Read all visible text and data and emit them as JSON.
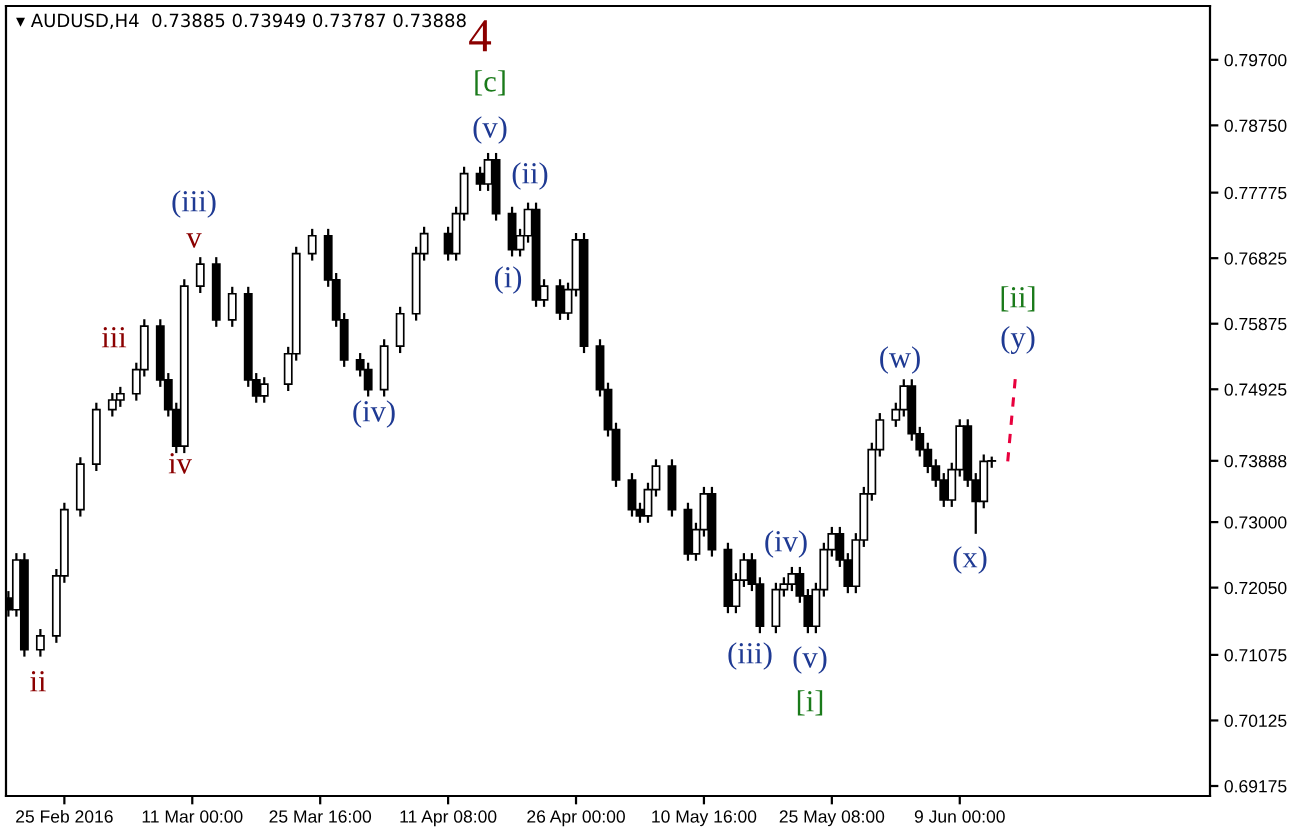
{
  "chart_data": {
    "type": "candlestick",
    "title": "▾ AUDUSD,H4  0.73885 0.73949 0.73787 0.73888",
    "categories": [
      null,
      null,
      null,
      null,
      null,
      null,
      null,
      "25 Feb 2016",
      null,
      null,
      null,
      null,
      null,
      null,
      null,
      null,
      null,
      null,
      null,
      null,
      null,
      null,
      null,
      "11 Mar 00:00",
      null,
      null,
      null,
      null,
      null,
      null,
      null,
      null,
      null,
      null,
      null,
      null,
      null,
      null,
      null,
      "25 Mar 16:00",
      null,
      null,
      null,
      null,
      null,
      null,
      null,
      null,
      null,
      null,
      null,
      null,
      null,
      null,
      null,
      "11 Apr 08:00",
      null,
      null,
      null,
      null,
      null,
      null,
      null,
      null,
      null,
      null,
      null,
      null,
      null,
      null,
      null,
      "26 Apr 00:00",
      null,
      null,
      null,
      null,
      null,
      null,
      null,
      null,
      null,
      null,
      null,
      null,
      null,
      null,
      null,
      "10 May 16:00",
      null,
      null,
      null,
      null,
      null,
      null,
      null,
      null,
      null,
      null,
      null,
      null,
      null,
      null,
      null,
      "25 May 08:00",
      null,
      null,
      null,
      null,
      null,
      null,
      null,
      null,
      null,
      null,
      null,
      null,
      null,
      null,
      null,
      "9 Jun 00:00",
      null,
      null,
      null,
      null,
      null,
      null,
      null,
      null,
      null,
      null,
      null,
      null,
      null,
      null,
      null,
      null,
      null,
      null,
      null,
      null,
      null,
      null,
      null,
      null,
      null,
      null,
      null,
      null,
      null,
      null,
      null
    ],
    "ylim": [
      0.6903,
      0.8048
    ],
    "yticks": [
      {
        "value": 0.797,
        "label": "0.79700"
      },
      {
        "value": 0.7875,
        "label": "0.78750"
      },
      {
        "value": 0.77775,
        "label": "0.77775"
      },
      {
        "value": 0.76825,
        "label": "0.76825"
      },
      {
        "value": 0.75875,
        "label": "0.75875"
      },
      {
        "value": 0.74925,
        "label": "0.74925"
      },
      {
        "value": 0.73888,
        "label": "0.73888"
      },
      {
        "value": 0.73,
        "label": "0.73000"
      },
      {
        "value": 0.7205,
        "label": "0.72050"
      },
      {
        "value": 0.71075,
        "label": "0.71075"
      },
      {
        "value": 0.70125,
        "label": "0.70125"
      },
      {
        "value": 0.69175,
        "label": "0.69175"
      }
    ],
    "grid": false,
    "series": [
      {
        "type": "candlestick",
        "color": "#000000",
        "ohlc": [
          [
            0.719,
            0.72,
            0.7163,
            0.7173
          ],
          [
            0.7173,
            0.7255,
            0.7163,
            0.7245
          ],
          [
            0.7245,
            0.7255,
            0.7105,
            0.7115
          ],
          null,
          [
            0.7115,
            0.7145,
            0.7105,
            0.7135
          ],
          null,
          [
            0.7135,
            0.7232,
            0.7125,
            0.7222
          ],
          [
            0.7222,
            0.7328,
            0.7212,
            0.7318
          ],
          null,
          [
            0.7318,
            0.7394,
            0.7308,
            0.7384
          ],
          null,
          [
            0.7384,
            0.7473,
            0.7374,
            0.7463
          ],
          null,
          [
            0.7463,
            0.7487,
            0.7453,
            0.7477
          ],
          [
            0.7477,
            0.7496,
            0.7467,
            0.7486
          ],
          null,
          [
            0.7486,
            0.7531,
            0.7476,
            0.7521
          ],
          [
            0.7521,
            0.7594,
            0.7511,
            0.7584
          ],
          null,
          [
            0.7584,
            0.7594,
            0.7496,
            0.7506
          ],
          [
            0.7506,
            0.7516,
            0.7453,
            0.7463
          ],
          [
            0.7463,
            0.7473,
            0.74,
            0.741
          ],
          [
            0.741,
            0.7652,
            0.74,
            0.7642
          ],
          null,
          [
            0.7642,
            0.7684,
            0.7632,
            0.7674
          ],
          null,
          [
            0.7674,
            0.7684,
            0.7583,
            0.7593
          ],
          null,
          [
            0.7593,
            0.7641,
            0.7583,
            0.7631
          ],
          null,
          [
            0.7631,
            0.7641,
            0.7496,
            0.7506
          ],
          [
            0.7506,
            0.7516,
            0.7473,
            0.7483
          ],
          [
            0.7483,
            0.751,
            0.7473,
            0.75
          ],
          null,
          null,
          [
            0.75,
            0.7554,
            0.749,
            0.7544
          ],
          [
            0.7544,
            0.7699,
            0.7534,
            0.7689
          ],
          null,
          [
            0.7689,
            0.7725,
            0.7679,
            0.7715
          ],
          null,
          [
            0.7715,
            0.7725,
            0.7641,
            0.7651
          ],
          [
            0.7651,
            0.7661,
            0.7583,
            0.7593
          ],
          [
            0.7593,
            0.7603,
            0.7525,
            0.7535
          ],
          null,
          [
            0.7535,
            0.7545,
            0.7511,
            0.7521
          ],
          [
            0.7521,
            0.7531,
            0.7482,
            0.7492
          ],
          null,
          [
            0.7492,
            0.7565,
            0.7482,
            0.7555
          ],
          null,
          [
            0.7555,
            0.7612,
            0.7545,
            0.7602
          ],
          null,
          [
            0.7602,
            0.7699,
            0.7592,
            0.7689
          ],
          [
            0.7689,
            0.7728,
            0.7679,
            0.7718
          ],
          null,
          null,
          [
            0.7718,
            0.7728,
            0.7679,
            0.7689
          ],
          [
            0.7689,
            0.7757,
            0.7679,
            0.7747
          ],
          [
            0.7747,
            0.7815,
            0.7737,
            0.7805
          ],
          null,
          [
            0.7805,
            0.7815,
            0.778,
            0.779
          ],
          [
            0.779,
            0.7835,
            0.778,
            0.7825
          ],
          [
            0.7825,
            0.7835,
            0.7737,
            0.7747
          ],
          null,
          [
            0.7747,
            0.7757,
            0.7685,
            0.7695
          ],
          [
            0.7695,
            0.7725,
            0.7685,
            0.7715
          ],
          [
            0.7715,
            0.7763,
            0.7705,
            0.7753
          ],
          [
            0.7753,
            0.7763,
            0.7612,
            0.7622
          ],
          [
            0.7622,
            0.7652,
            0.7612,
            0.7642
          ],
          null,
          [
            0.7642,
            0.7652,
            0.7593,
            0.7603
          ],
          [
            0.7603,
            0.7647,
            0.7593,
            0.7637
          ],
          [
            0.7637,
            0.7719,
            0.7627,
            0.7709
          ],
          [
            0.7709,
            0.7719,
            0.7545,
            0.7555
          ],
          null,
          [
            0.7555,
            0.7565,
            0.7482,
            0.7492
          ],
          [
            0.7492,
            0.7502,
            0.7424,
            0.7434
          ],
          [
            0.7434,
            0.7444,
            0.7351,
            0.7361
          ],
          null,
          [
            0.7361,
            0.7371,
            0.7308,
            0.7318
          ],
          [
            0.7318,
            0.7328,
            0.7299,
            0.7309
          ],
          [
            0.7309,
            0.7357,
            0.7299,
            0.7347
          ],
          [
            0.7347,
            0.7391,
            0.7337,
            0.7381
          ],
          null,
          [
            0.7381,
            0.7391,
            0.7308,
            0.7318
          ],
          null,
          [
            0.7318,
            0.7328,
            0.7244,
            0.7254
          ],
          [
            0.7254,
            0.7299,
            0.7244,
            0.7289
          ],
          [
            0.7289,
            0.7351,
            0.7279,
            0.7341
          ],
          [
            0.7341,
            0.7351,
            0.725,
            0.726
          ],
          null,
          [
            0.726,
            0.727,
            0.7168,
            0.7178
          ],
          [
            0.7178,
            0.7226,
            0.7168,
            0.7216
          ],
          [
            0.7216,
            0.7255,
            0.7206,
            0.7245
          ],
          [
            0.7245,
            0.7255,
            0.72,
            0.721
          ],
          [
            0.721,
            0.722,
            0.7139,
            0.7149
          ],
          null,
          [
            0.7149,
            0.7212,
            0.7139,
            0.7202
          ],
          [
            0.7202,
            0.722,
            0.7192,
            0.721
          ],
          [
            0.721,
            0.7235,
            0.72,
            0.7225
          ],
          [
            0.7225,
            0.7235,
            0.7183,
            0.7193
          ],
          [
            0.7193,
            0.7203,
            0.7139,
            0.7149
          ],
          [
            0.7149,
            0.7212,
            0.7139,
            0.7202
          ],
          [
            0.7202,
            0.727,
            0.7192,
            0.726
          ],
          [
            0.726,
            0.7293,
            0.725,
            0.7283
          ],
          [
            0.7283,
            0.7293,
            0.7235,
            0.7245
          ],
          [
            0.7245,
            0.7255,
            0.7197,
            0.7207
          ],
          [
            0.7207,
            0.7284,
            0.7197,
            0.7274
          ],
          [
            0.7274,
            0.7351,
            0.7264,
            0.7341
          ],
          [
            0.7341,
            0.7415,
            0.7331,
            0.7405
          ],
          [
            0.7405,
            0.7458,
            0.7395,
            0.7448
          ],
          null,
          [
            0.7448,
            0.7473,
            0.7438,
            0.7463
          ],
          [
            0.7463,
            0.7507,
            0.7453,
            0.7497
          ],
          [
            0.7497,
            0.7507,
            0.7418,
            0.7428
          ],
          [
            0.7428,
            0.7438,
            0.7395,
            0.7405
          ],
          [
            0.7405,
            0.7415,
            0.7371,
            0.7381
          ],
          [
            0.7381,
            0.7391,
            0.7351,
            0.7361
          ],
          [
            0.7361,
            0.7371,
            0.7322,
            0.7332
          ],
          [
            0.7332,
            0.7386,
            0.7322,
            0.7376
          ],
          [
            0.7376,
            0.7449,
            0.7366,
            0.7439
          ],
          [
            0.7439,
            0.7449,
            0.7351,
            0.7361
          ],
          [
            0.7361,
            0.7371,
            0.7283,
            0.733
          ],
          [
            0.733,
            0.7398,
            0.732,
            0.7388
          ],
          [
            0.73885,
            0.73949,
            0.73787,
            0.73888
          ],
          null,
          null,
          null,
          null,
          null,
          null,
          null,
          null,
          null,
          null,
          null,
          null,
          null,
          null,
          null,
          null,
          null,
          null,
          null,
          null,
          null,
          null,
          null,
          null,
          null,
          null,
          null
        ]
      },
      {
        "type": "line",
        "color": "#e8003d",
        "line_style": "dashed",
        "values": [
          null,
          null,
          null,
          null,
          null,
          null,
          null,
          null,
          null,
          null,
          null,
          null,
          null,
          null,
          null,
          null,
          null,
          null,
          null,
          null,
          null,
          null,
          null,
          null,
          null,
          null,
          null,
          null,
          null,
          null,
          null,
          null,
          null,
          null,
          null,
          null,
          null,
          null,
          null,
          null,
          null,
          null,
          null,
          null,
          null,
          null,
          null,
          null,
          null,
          null,
          null,
          null,
          null,
          null,
          null,
          null,
          null,
          null,
          null,
          null,
          null,
          null,
          null,
          null,
          null,
          null,
          null,
          null,
          null,
          null,
          null,
          null,
          null,
          null,
          null,
          null,
          null,
          null,
          null,
          null,
          null,
          null,
          null,
          null,
          null,
          null,
          null,
          null,
          null,
          null,
          null,
          null,
          null,
          null,
          null,
          null,
          null,
          null,
          null,
          null,
          null,
          null,
          null,
          null,
          null,
          null,
          null,
          null,
          null,
          null,
          null,
          null,
          null,
          null,
          null,
          null,
          null,
          null,
          null,
          null,
          null,
          null,
          null,
          null,
          null,
          0.7388,
          0.7515,
          null,
          null,
          null,
          null,
          null,
          null,
          null,
          null,
          null,
          null,
          null,
          null,
          null,
          null,
          null,
          null,
          null,
          null,
          null,
          null,
          null,
          null,
          null,
          null
        ]
      }
    ],
    "annotations": [
      "4",
      "[c]",
      "(v)",
      "(ii)",
      "(i)",
      "(iii)",
      "v",
      "iii",
      "iv",
      "ii",
      "(iv)",
      "(w)",
      "[ii]",
      "(y)",
      "(x)",
      "(iv)",
      "(iii)",
      "(v)",
      "[i]"
    ]
  }
}
